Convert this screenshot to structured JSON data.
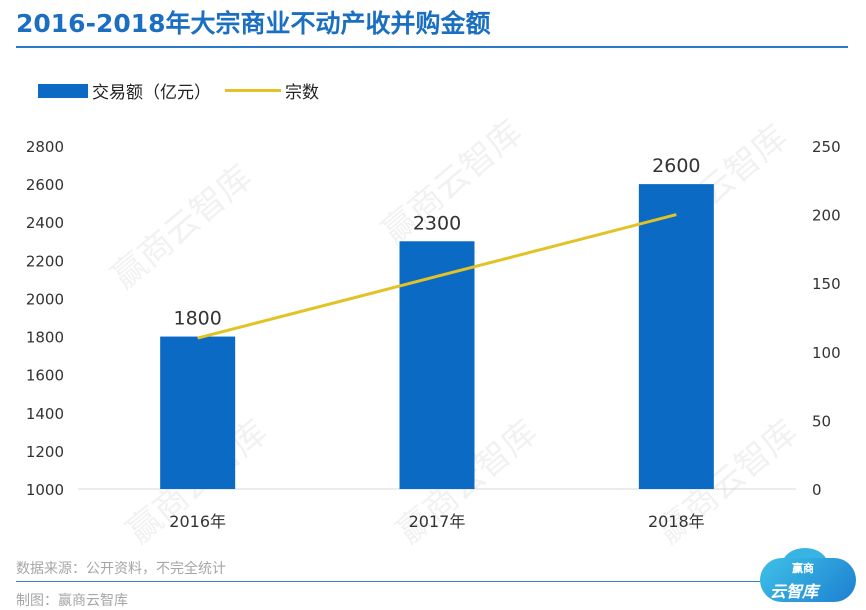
{
  "header": {
    "title": "2016-2018年大宗商业不动产收并购金额"
  },
  "legend": {
    "bar_label": "交易额（亿元）",
    "line_label": "宗数"
  },
  "watermark": {
    "text": "赢商云智库"
  },
  "footer": {
    "source": "数据来源：公开资料，不完全统计",
    "maker": "制图：赢商云智库"
  },
  "logo": {
    "line1": "赢商",
    "line2": "云智库"
  },
  "colors": {
    "bar": "#0b6bc4",
    "line": "#e3c226",
    "title": "#1b6fc2"
  },
  "chart_data": {
    "type": "bar",
    "categories": [
      "2016年",
      "2017年",
      "2018年"
    ],
    "series": [
      {
        "name": "交易额（亿元）",
        "type": "bar",
        "axis": "left",
        "values": [
          1800,
          2300,
          2600
        ]
      },
      {
        "name": "宗数",
        "type": "line",
        "axis": "right",
        "values": [
          110,
          155,
          200
        ]
      }
    ],
    "y_left": {
      "range": [
        1000,
        2800
      ],
      "ticks": [
        1000,
        1200,
        1400,
        1600,
        1800,
        2000,
        2200,
        2400,
        2600,
        2800
      ]
    },
    "y_right": {
      "range": [
        0,
        250
      ],
      "ticks": [
        0,
        50,
        100,
        150,
        200,
        250
      ]
    },
    "data_labels": [
      "1800",
      "2300",
      "2600"
    ],
    "grid": false,
    "legend_position": "top-left"
  }
}
